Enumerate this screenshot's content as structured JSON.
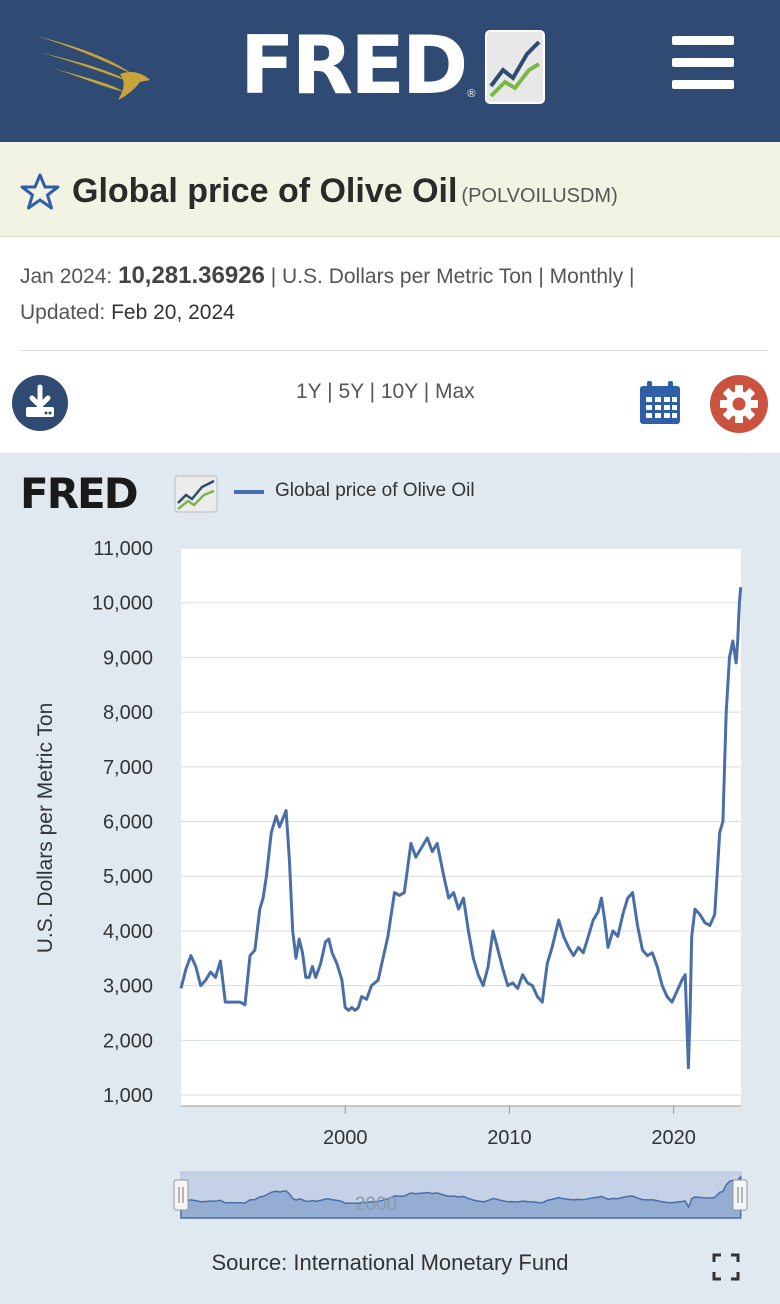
{
  "header": {
    "logo_text": "FRED",
    "logo_reg": "®",
    "eagle_icon": "eagle-icon",
    "menu_icon": "hamburger-menu-icon"
  },
  "series": {
    "title": "Global price of Olive Oil",
    "id": "(POLVOILUSDM)"
  },
  "meta": {
    "date": "Jan 2024:",
    "value": "10,281.36926",
    "units_freq": "| U.S. Dollars per Metric Ton | Monthly |",
    "updated_label": "Updated:",
    "updated_date": "Feb 20, 2024"
  },
  "toolbar": {
    "ranges": [
      "1Y",
      "5Y",
      "10Y",
      "Max"
    ],
    "download_icon": "download-icon",
    "calendar_icon": "calendar-icon",
    "settings_icon": "gear-icon"
  },
  "colors": {
    "header_bg": "#2f4a73",
    "title_bg": "#f3f3e3",
    "chart_bg": "#e1e9f0",
    "series_line": "#4a6ea8",
    "settings_btn": "#c9533f"
  },
  "chart": {
    "brand": "FRED",
    "legend": "Global price of Olive Oil",
    "source": "Source: International Monetary Fund",
    "navigator_label": "2000"
  },
  "chart_data": {
    "type": "line",
    "ylabel": "U.S. Dollars per Metric Ton",
    "xlabel": "",
    "y_ticks": [
      "1,000",
      "2,000",
      "3,000",
      "4,000",
      "5,000",
      "6,000",
      "7,000",
      "8,000",
      "9,000",
      "10,000",
      "11,000"
    ],
    "x_ticks": [
      "2000",
      "2010",
      "2020"
    ],
    "ylim": [
      800,
      11000
    ],
    "xlim": [
      1990.0,
      2024.1
    ],
    "grid": "horizontal",
    "series": [
      {
        "name": "Global price of Olive Oil",
        "x": [
          1990.0,
          1990.3,
          1990.6,
          1990.9,
          1991.2,
          1991.5,
          1991.8,
          1992.1,
          1992.4,
          1992.7,
          1993.0,
          1993.3,
          1993.6,
          1993.9,
          1994.2,
          1994.5,
          1994.8,
          1995.0,
          1995.2,
          1995.5,
          1995.8,
          1996.0,
          1996.2,
          1996.4,
          1996.6,
          1996.8,
          1997.0,
          1997.2,
          1997.4,
          1997.6,
          1997.8,
          1998.0,
          1998.2,
          1998.5,
          1998.8,
          1999.0,
          1999.2,
          1999.5,
          1999.8,
          2000.0,
          2000.2,
          2000.4,
          2000.6,
          2000.8,
          2001.0,
          2001.3,
          2001.6,
          2002.0,
          2002.3,
          2002.6,
          2003.0,
          2003.3,
          2003.6,
          2004.0,
          2004.3,
          2004.6,
          2005.0,
          2005.3,
          2005.6,
          2006.0,
          2006.3,
          2006.6,
          2006.9,
          2007.2,
          2007.5,
          2007.8,
          2008.1,
          2008.4,
          2008.7,
          2009.0,
          2009.3,
          2009.6,
          2009.9,
          2010.2,
          2010.5,
          2010.8,
          2011.1,
          2011.4,
          2011.7,
          2012.0,
          2012.3,
          2012.6,
          2013.0,
          2013.3,
          2013.6,
          2013.9,
          2014.2,
          2014.5,
          2014.8,
          2015.1,
          2015.4,
          2015.6,
          2015.8,
          2016.0,
          2016.3,
          2016.6,
          2016.9,
          2017.2,
          2017.5,
          2017.8,
          2018.1,
          2018.4,
          2018.7,
          2019.0,
          2019.3,
          2019.6,
          2019.9,
          2020.2,
          2020.5,
          2020.7,
          2020.9,
          2021.0,
          2021.1,
          2021.3,
          2021.6,
          2021.9,
          2022.2,
          2022.5,
          2022.8,
          2023.0,
          2023.2,
          2023.4,
          2023.6,
          2023.8,
          2023.9,
          2024.0,
          2024.08
        ],
        "y": [
          2950,
          3300,
          3550,
          3350,
          3000,
          3100,
          3250,
          3150,
          3450,
          2700,
          2700,
          2700,
          2700,
          2650,
          3550,
          3650,
          4400,
          4600,
          5000,
          5800,
          6100,
          5900,
          6050,
          6200,
          5300,
          4000,
          3500,
          3850,
          3600,
          3150,
          3150,
          3350,
          3150,
          3400,
          3800,
          3850,
          3600,
          3400,
          3100,
          2600,
          2550,
          2600,
          2550,
          2600,
          2800,
          2750,
          3000,
          3100,
          3500,
          3900,
          4700,
          4650,
          4700,
          5600,
          5350,
          5500,
          5700,
          5450,
          5600,
          5000,
          4600,
          4700,
          4400,
          4600,
          4000,
          3500,
          3200,
          3000,
          3350,
          4000,
          3650,
          3300,
          3000,
          3050,
          2950,
          3200,
          3050,
          3000,
          2800,
          2700,
          3400,
          3700,
          4200,
          3900,
          3700,
          3550,
          3700,
          3600,
          3900,
          4200,
          4350,
          4600,
          4200,
          3700,
          4000,
          3900,
          4300,
          4600,
          4700,
          4100,
          3650,
          3550,
          3600,
          3350,
          3000,
          2800,
          2700,
          2900,
          3100,
          3200,
          1500,
          2500,
          3900,
          4400,
          4300,
          4150,
          4100,
          4300,
          5800,
          6000,
          8000,
          9000,
          9300,
          8900,
          9300,
          10000,
          10281
        ]
      }
    ]
  }
}
